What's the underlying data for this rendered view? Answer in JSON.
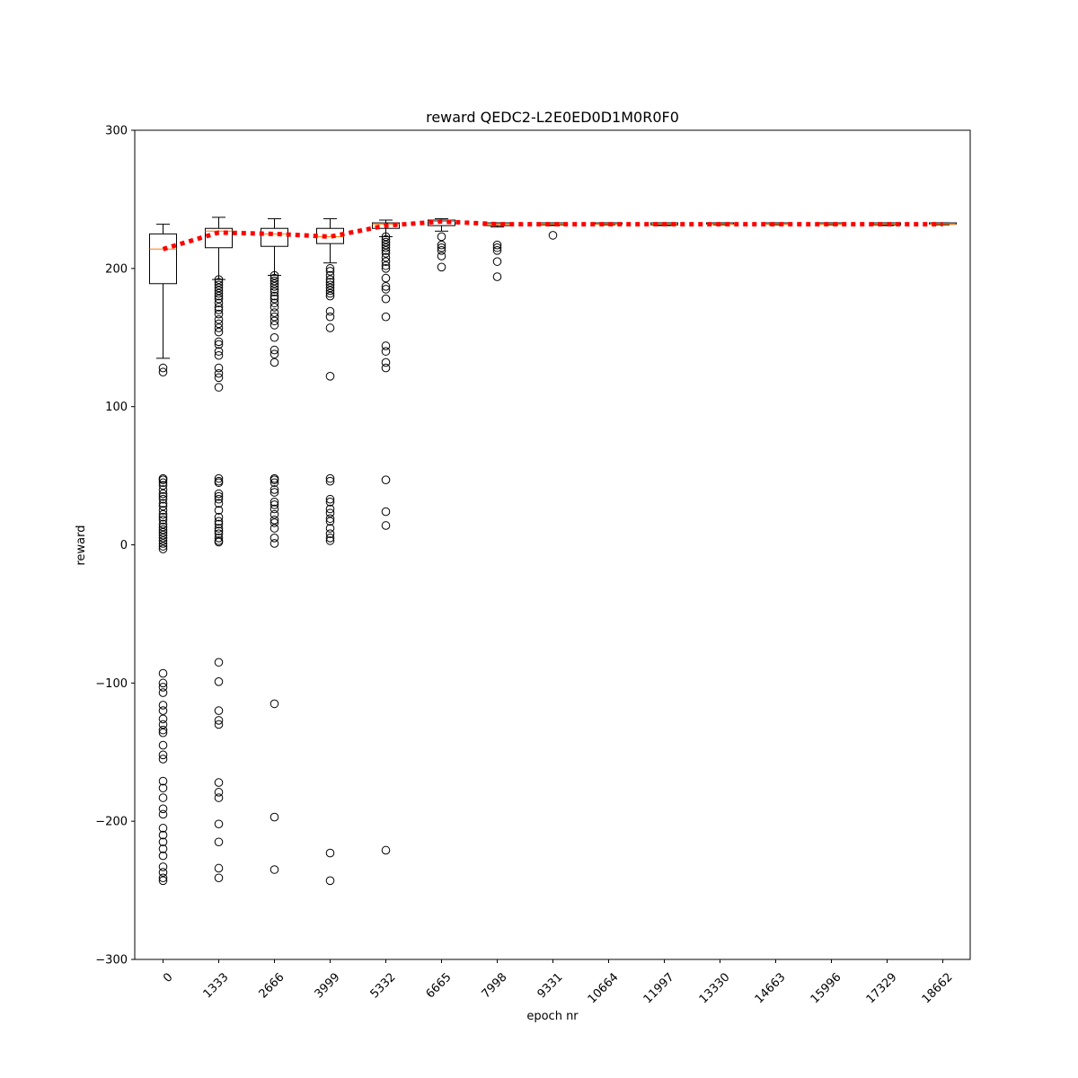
{
  "chart_data": {
    "type": "box",
    "title": "reward QEDC2-L2E0ED0D1M0R0F0",
    "xlabel": "epoch nr",
    "ylabel": "reward",
    "ylim": [
      -300,
      300
    ],
    "yticks": [
      -300,
      -200,
      -100,
      0,
      100,
      200,
      300
    ],
    "yticklabels": [
      "−300",
      "−200",
      "−100",
      "0",
      "100",
      "200",
      "300"
    ],
    "categories": [
      "0",
      "1333",
      "2666",
      "3999",
      "5332",
      "6665",
      "7998",
      "9331",
      "10664",
      "11997",
      "13330",
      "14663",
      "15996",
      "17329",
      "18662"
    ],
    "grid": false,
    "colors": {
      "box": "#000000",
      "median": "#ff7f0e",
      "mean_line": "#ff0000",
      "outlier": "#000000"
    },
    "boxes": [
      {
        "whislo": 135,
        "q1": 189,
        "med": 214,
        "q3": 225,
        "whishi": 232,
        "fliers": [
          128,
          125,
          48,
          47,
          45,
          43,
          40,
          37,
          35,
          33,
          30,
          28,
          25,
          22,
          20,
          18,
          15,
          13,
          11,
          9,
          7,
          5,
          3,
          1,
          -1,
          -3,
          -93,
          -100,
          -103,
          -107,
          -116,
          -120,
          -126,
          -130,
          -134,
          -136,
          -145,
          -152,
          -155,
          -171,
          -176,
          -183,
          -191,
          -195,
          -205,
          -210,
          -215,
          -220,
          -225,
          -233,
          -237,
          -241,
          -243
        ]
      },
      {
        "whislo": 192,
        "q1": 215,
        "med": 227,
        "q3": 229,
        "whishi": 237,
        "fliers": [
          192,
          190,
          188,
          186,
          184,
          182,
          180,
          178,
          175,
          172,
          170,
          167,
          163,
          160,
          157,
          154,
          147,
          145,
          140,
          137,
          128,
          124,
          121,
          114,
          48,
          46,
          45,
          37,
          35,
          33,
          30,
          25,
          20,
          17,
          15,
          12,
          10,
          8,
          5,
          3,
          2,
          -85,
          -99,
          -120,
          -127,
          -130,
          -172,
          -179,
          -183,
          -202,
          -215,
          -234,
          -241
        ]
      },
      {
        "whislo": 195,
        "q1": 216,
        "med": 225,
        "q3": 229,
        "whishi": 236,
        "fliers": [
          195,
          193,
          191,
          189,
          187,
          185,
          183,
          180,
          178,
          175,
          172,
          168,
          165,
          162,
          159,
          150,
          141,
          138,
          132,
          48,
          47,
          45,
          40,
          38,
          31,
          29,
          26,
          22,
          18,
          16,
          12,
          5,
          1,
          -115,
          -197,
          -235
        ]
      },
      {
        "whislo": 204,
        "q1": 218,
        "med": 223,
        "q3": 229,
        "whishi": 236,
        "fliers": [
          200,
          198,
          195,
          192,
          190,
          188,
          186,
          184,
          182,
          180,
          169,
          165,
          157,
          122,
          48,
          46,
          33,
          31,
          26,
          23,
          19,
          17,
          12,
          8,
          5,
          3,
          -223,
          -243
        ]
      },
      {
        "whislo": 223,
        "q1": 229,
        "med": 232,
        "q3": 233,
        "whishi": 235,
        "fliers": [
          223,
          221,
          219,
          217,
          215,
          213,
          211,
          208,
          205,
          202,
          200,
          193,
          187,
          185,
          178,
          165,
          144,
          140,
          132,
          128,
          47,
          24,
          14,
          -221
        ]
      },
      {
        "whislo": 227,
        "q1": 231,
        "med": 234,
        "q3": 235,
        "whishi": 236,
        "fliers": [
          223,
          217,
          215,
          213,
          209,
          201
        ]
      },
      {
        "whislo": 230,
        "q1": 231,
        "med": 232,
        "q3": 233,
        "whishi": 233,
        "fliers": [
          217,
          215,
          213,
          205,
          194
        ]
      },
      {
        "whislo": 231,
        "q1": 231.5,
        "med": 232,
        "q3": 233,
        "whishi": 233,
        "fliers": [
          224
        ]
      },
      {
        "whislo": 231.5,
        "q1": 232,
        "med": 232,
        "q3": 233,
        "whishi": 233,
        "fliers": []
      },
      {
        "whislo": 231,
        "q1": 231.5,
        "med": 232,
        "q3": 233,
        "whishi": 233,
        "fliers": []
      },
      {
        "whislo": 231.5,
        "q1": 232,
        "med": 232,
        "q3": 233,
        "whishi": 233,
        "fliers": []
      },
      {
        "whislo": 231.5,
        "q1": 232,
        "med": 232,
        "q3": 233,
        "whishi": 233,
        "fliers": []
      },
      {
        "whislo": 231.5,
        "q1": 232,
        "med": 232,
        "q3": 233,
        "whishi": 233,
        "fliers": []
      },
      {
        "whislo": 231,
        "q1": 231.5,
        "med": 232,
        "q3": 233,
        "whishi": 233,
        "fliers": []
      },
      {
        "whislo": 231.5,
        "q1": 232,
        "med": 232,
        "q3": 233,
        "whishi": 233,
        "fliers": []
      }
    ],
    "mean_line": {
      "style": "dotted",
      "values": [
        214,
        226,
        225,
        223,
        231,
        234,
        232,
        232,
        232,
        232,
        232,
        232,
        232,
        232,
        232
      ]
    }
  }
}
